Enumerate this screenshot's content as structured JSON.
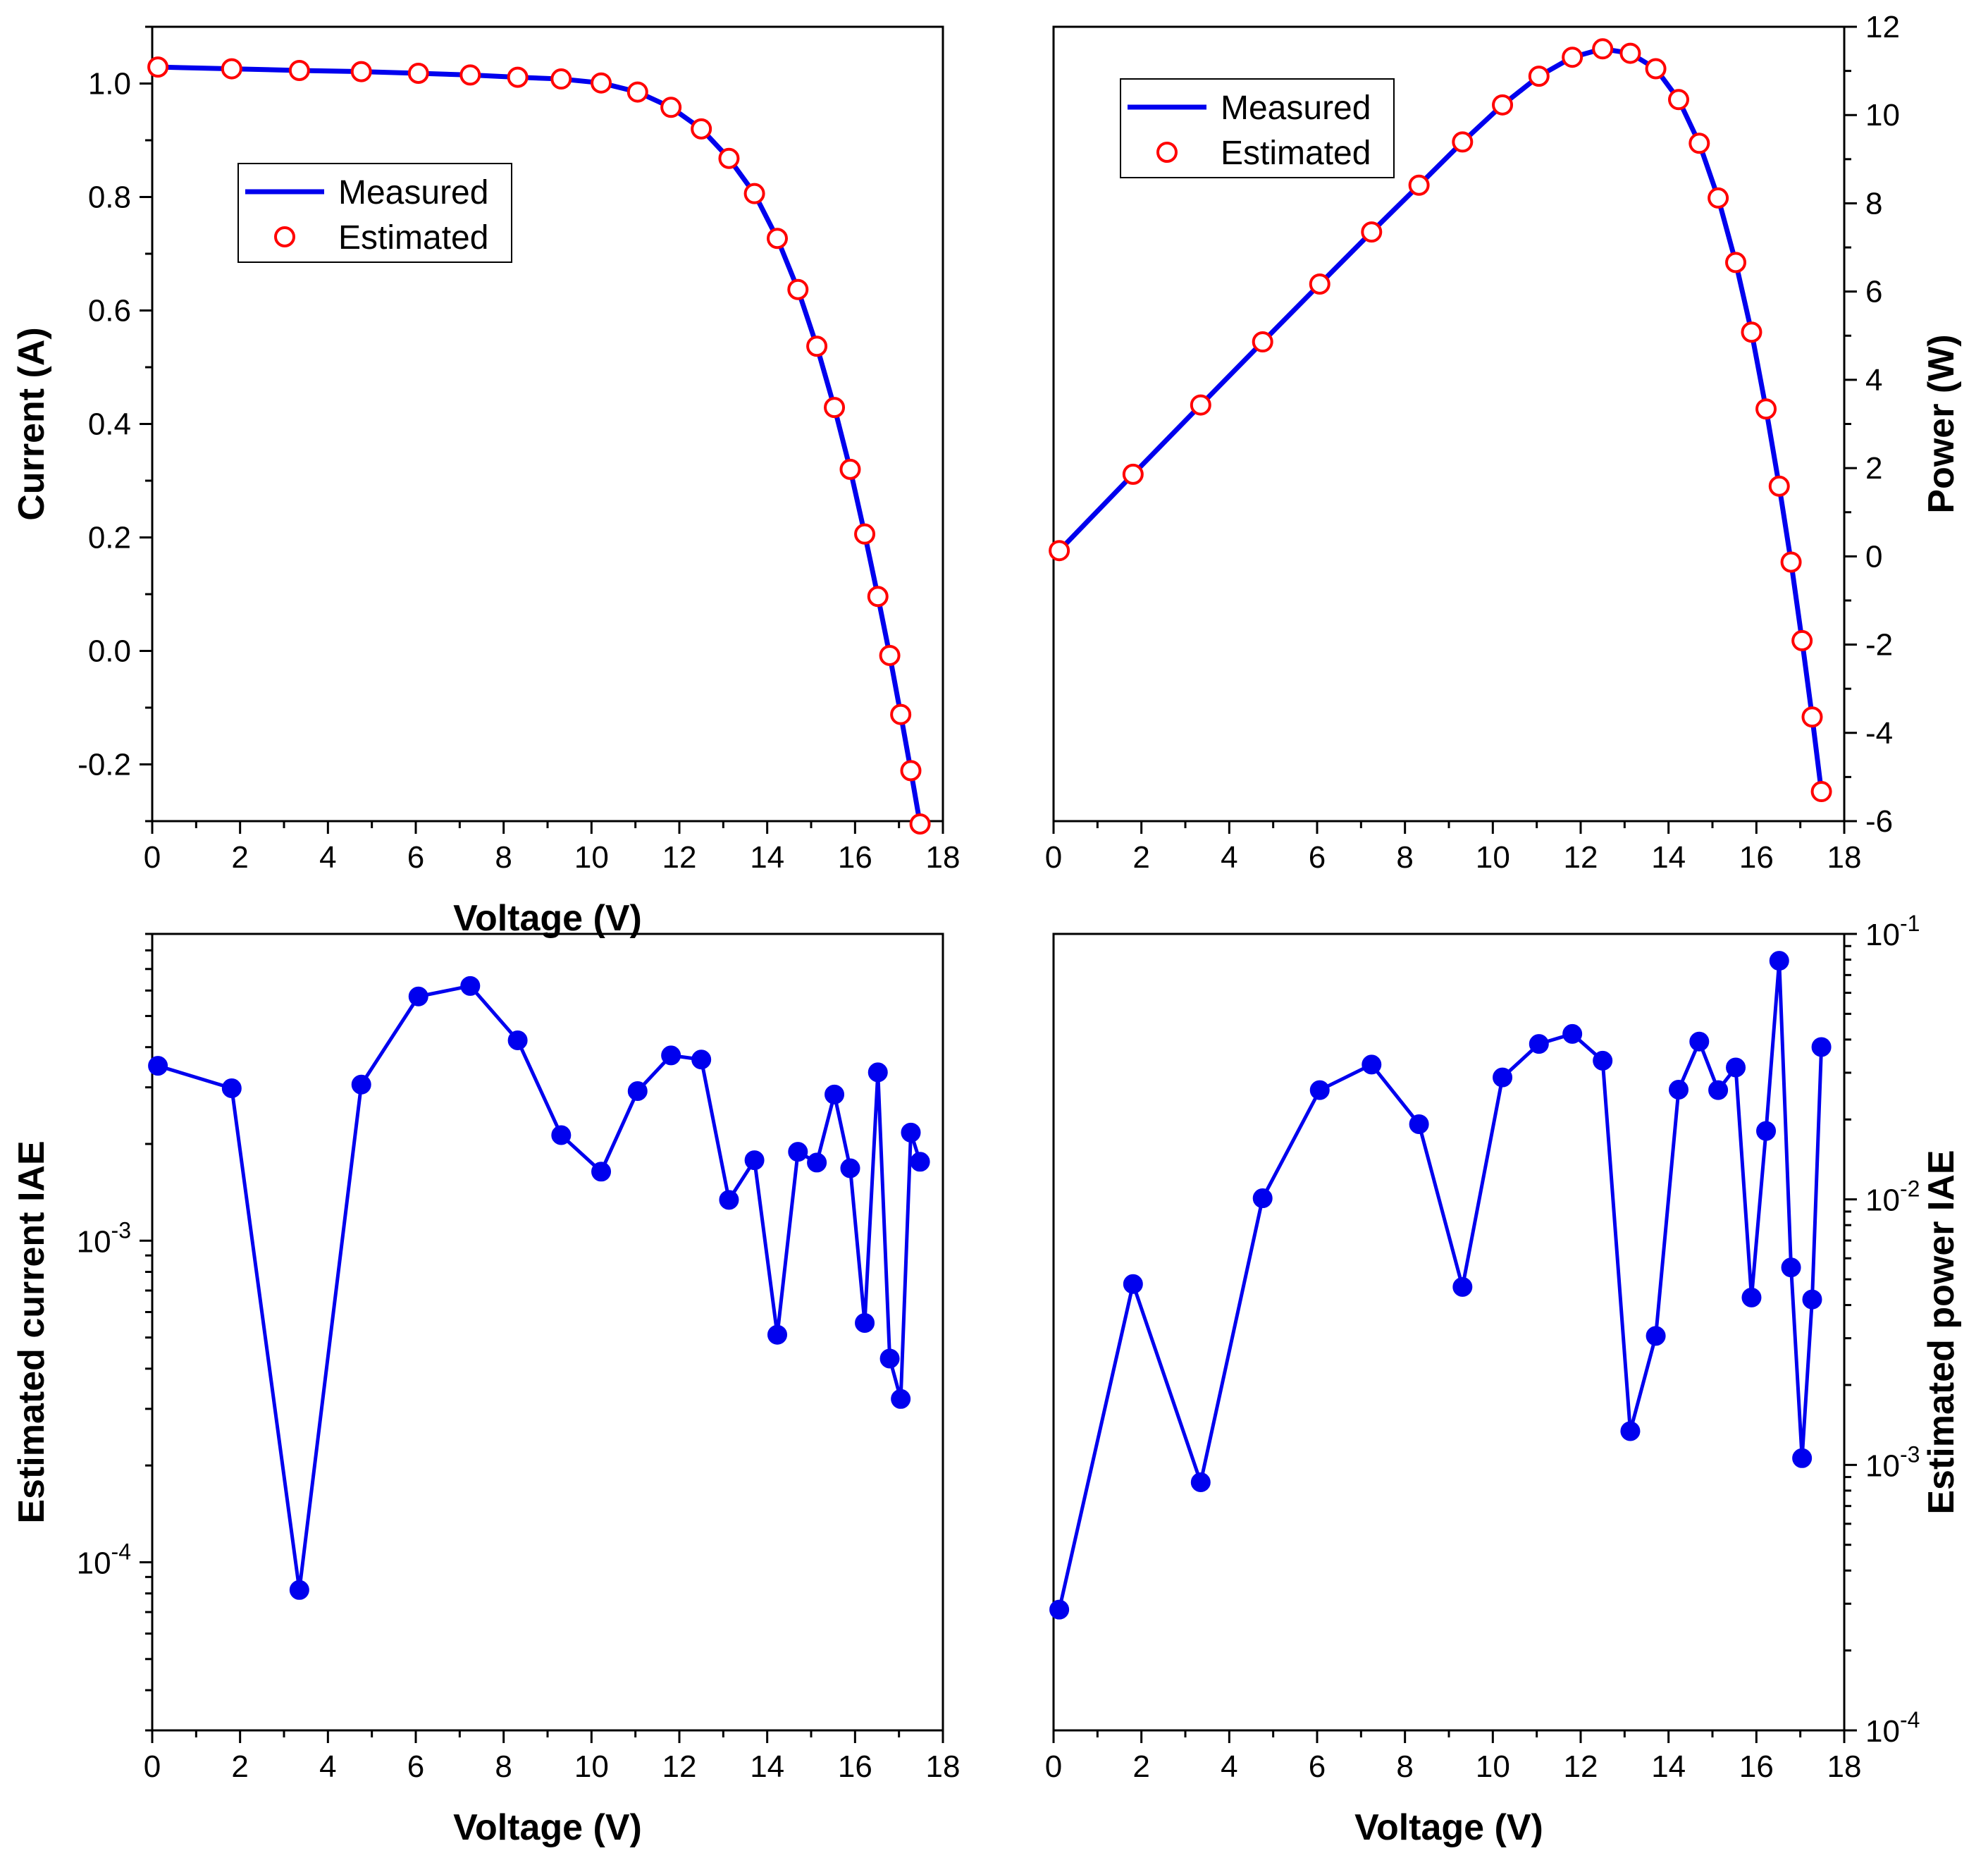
{
  "colors": {
    "series": "#0000ee",
    "marker_edge": "#ff0000",
    "marker_fill": "#ffffff",
    "axis": "#000000",
    "background": "#ffffff"
  },
  "chart_data": [
    {
      "id": "current-voltage",
      "type": "line",
      "title": "",
      "xlabel": "Voltage (V)",
      "ylabel": "Current (A)",
      "xlim": [
        0,
        18
      ],
      "ylim": [
        -0.3,
        1.1
      ],
      "yscale": "linear",
      "xticks": [
        0,
        2,
        4,
        6,
        8,
        10,
        12,
        14,
        16,
        18
      ],
      "xtick_labels": [
        "0",
        "2",
        "4",
        "6",
        "8",
        "10",
        "12",
        "14",
        "16",
        "18"
      ],
      "yticks": [
        -0.2,
        0.0,
        0.2,
        0.4,
        0.6,
        0.8,
        1.0
      ],
      "ytick_labels": [
        "-0.2",
        "0.0",
        "0.2",
        "0.4",
        "0.6",
        "0.8",
        "1.0"
      ],
      "legend_position": "upper-left",
      "x": [
        0.13,
        1.81,
        3.35,
        4.76,
        6.06,
        7.24,
        8.32,
        9.31,
        10.22,
        11.05,
        11.81,
        12.5,
        13.13,
        13.71,
        14.23,
        14.7,
        15.13,
        15.53,
        15.89,
        16.22,
        16.52,
        16.79,
        17.04,
        17.27,
        17.48
      ],
      "series": [
        {
          "name": "Measured",
          "style": "line",
          "values": [
            1.029,
            1.026,
            1.023,
            1.021,
            1.018,
            1.015,
            1.011,
            1.008,
            1.001,
            0.985,
            0.958,
            0.92,
            0.868,
            0.806,
            0.727,
            0.637,
            0.537,
            0.429,
            0.32,
            0.206,
            0.096,
            -0.008,
            -0.112,
            -0.211,
            -0.305
          ]
        },
        {
          "name": "Estimated",
          "style": "markers",
          "values": [
            1.029,
            1.026,
            1.023,
            1.021,
            1.018,
            1.015,
            1.011,
            1.008,
            1.001,
            0.985,
            0.958,
            0.92,
            0.868,
            0.806,
            0.727,
            0.637,
            0.537,
            0.429,
            0.32,
            0.206,
            0.096,
            -0.008,
            -0.112,
            -0.211,
            -0.305
          ]
        }
      ]
    },
    {
      "id": "power-voltage",
      "type": "line",
      "title": "",
      "xlabel": "",
      "ylabel": "Power (W)",
      "xlim": [
        0,
        18
      ],
      "ylim": [
        -6,
        12
      ],
      "yscale": "linear",
      "xticks": [
        0,
        2,
        4,
        6,
        8,
        10,
        12,
        14,
        16,
        18
      ],
      "xtick_labels": [
        "0",
        "2",
        "4",
        "6",
        "8",
        "10",
        "12",
        "14",
        "16",
        "18"
      ],
      "yticks": [
        -6,
        -4,
        -2,
        0,
        2,
        4,
        6,
        8,
        10,
        12
      ],
      "ytick_labels": [
        "-6",
        "-4",
        "-2",
        "0",
        "2",
        "4",
        "6",
        "8",
        "10",
        "12"
      ],
      "legend_position": "upper-left",
      "x": [
        0.13,
        1.81,
        3.35,
        4.76,
        6.06,
        7.24,
        8.32,
        9.31,
        10.22,
        11.05,
        11.81,
        12.5,
        13.13,
        13.71,
        14.23,
        14.7,
        15.13,
        15.53,
        15.89,
        16.22,
        16.52,
        16.79,
        17.04,
        17.27,
        17.48
      ],
      "series": [
        {
          "name": "Measured",
          "style": "line",
          "values": [
            0.13,
            1.86,
            3.43,
            4.86,
            6.17,
            7.35,
            8.41,
            9.39,
            10.23,
            10.88,
            11.31,
            11.5,
            11.4,
            11.05,
            10.35,
            9.36,
            8.12,
            6.66,
            5.08,
            3.34,
            1.59,
            -0.13,
            -1.91,
            -3.64,
            -5.33
          ]
        },
        {
          "name": "Estimated",
          "style": "markers",
          "values": [
            0.13,
            1.86,
            3.43,
            4.86,
            6.17,
            7.35,
            8.41,
            9.39,
            10.23,
            10.88,
            11.31,
            11.5,
            11.4,
            11.05,
            10.35,
            9.36,
            8.12,
            6.66,
            5.08,
            3.34,
            1.59,
            -0.13,
            -1.91,
            -3.64,
            -5.33
          ]
        }
      ]
    },
    {
      "id": "current-iae",
      "type": "line",
      "title": "",
      "xlabel": "Voltage (V)",
      "ylabel": "Estimated current IAE",
      "xlim": [
        0,
        18
      ],
      "ylim": [
        3e-05,
        0.009
      ],
      "yscale": "log",
      "xticks": [
        0,
        2,
        4,
        6,
        8,
        10,
        12,
        14,
        16,
        18
      ],
      "xtick_labels": [
        "0",
        "2",
        "4",
        "6",
        "8",
        "10",
        "12",
        "14",
        "16",
        "18"
      ],
      "yticks": [
        0.0001,
        0.001
      ],
      "ytick_labels": [
        [
          "10",
          "-4"
        ],
        [
          "10",
          "-3"
        ]
      ],
      "x": [
        0.13,
        1.81,
        3.35,
        4.76,
        6.06,
        7.24,
        8.32,
        9.31,
        10.22,
        11.05,
        11.81,
        12.5,
        13.13,
        13.71,
        14.23,
        14.7,
        15.13,
        15.53,
        15.89,
        16.22,
        16.52,
        16.79,
        17.04,
        17.27,
        17.48
      ],
      "series": [
        {
          "name": "Estimated current IAE",
          "style": "line-markers",
          "values": [
            0.0035,
            0.00298,
            8.2e-05,
            0.00306,
            0.00575,
            0.0062,
            0.0042,
            0.00213,
            0.00164,
            0.00292,
            0.00377,
            0.00366,
            0.00134,
            0.00178,
            0.00051,
            0.00189,
            0.00175,
            0.00285,
            0.00168,
            0.000555,
            0.00334,
            0.00043,
            0.000322,
            0.00217,
            0.00176
          ]
        }
      ]
    },
    {
      "id": "power-iae",
      "type": "line",
      "title": "",
      "xlabel": "Voltage (V)",
      "ylabel": "Estimated power IAE",
      "xlim": [
        0,
        18
      ],
      "ylim": [
        0.0001,
        0.1
      ],
      "yscale": "log",
      "xticks": [
        0,
        2,
        4,
        6,
        8,
        10,
        12,
        14,
        16,
        18
      ],
      "xtick_labels": [
        "0",
        "2",
        "4",
        "6",
        "8",
        "10",
        "12",
        "14",
        "16",
        "18"
      ],
      "yticks": [
        0.0001,
        0.001,
        0.01,
        0.1
      ],
      "ytick_labels": [
        [
          "10",
          "-4"
        ],
        [
          "10",
          "-3"
        ],
        [
          "10",
          "-2"
        ],
        [
          "10",
          "-1"
        ]
      ],
      "x": [
        0.13,
        1.81,
        3.35,
        4.76,
        6.06,
        7.24,
        8.32,
        9.31,
        10.22,
        11.05,
        11.81,
        12.5,
        13.13,
        13.71,
        14.23,
        14.7,
        15.13,
        15.53,
        15.89,
        16.22,
        16.52,
        16.79,
        17.04,
        17.27,
        17.48
      ],
      "series": [
        {
          "name": "Estimated power IAE",
          "style": "line-markers",
          "values": [
            0.000285,
            0.0048,
            0.00086,
            0.0101,
            0.0258,
            0.0322,
            0.0192,
            0.00468,
            0.0288,
            0.0385,
            0.042,
            0.0333,
            0.00134,
            0.00306,
            0.0259,
            0.0393,
            0.0258,
            0.0314,
            0.00427,
            0.0181,
            0.0792,
            0.00554,
            0.00106,
            0.0042,
            0.0375
          ]
        }
      ]
    }
  ]
}
